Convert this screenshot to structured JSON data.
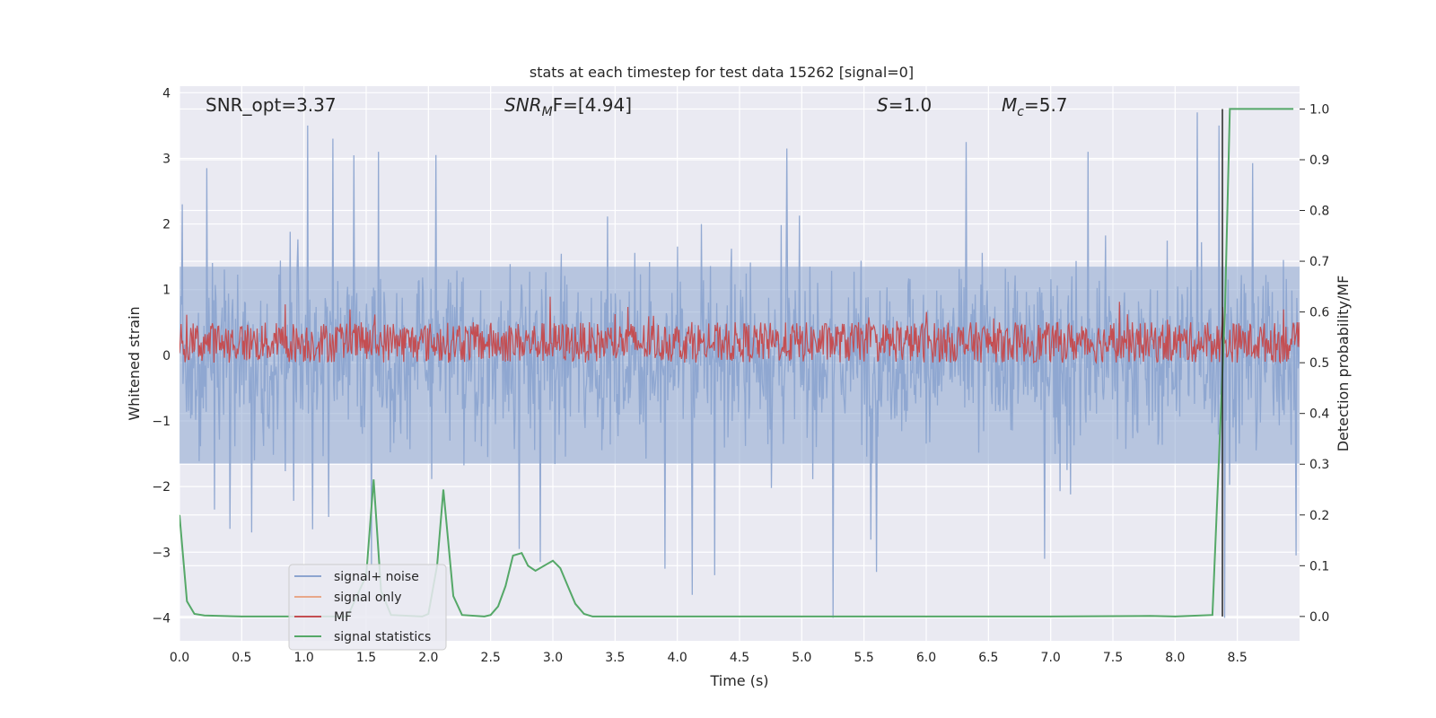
{
  "chart_data": {
    "type": "line",
    "title": "stats at each timestep for test data 15262 [signal=0]",
    "xlabel": "Time (s)",
    "ylabel": "Whitened strain",
    "ylabel_right": "Detection probability/MF",
    "xlim": [
      0.0,
      9.0
    ],
    "ylim": [
      -4.35,
      4.1
    ],
    "ylim_right": [
      -0.048,
      1.045
    ],
    "grid": true,
    "legend_position": "lower-left",
    "x_ticks": [
      "0.0",
      "0.5",
      "1.0",
      "1.5",
      "2.0",
      "2.5",
      "3.0",
      "3.5",
      "4.0",
      "4.5",
      "5.0",
      "5.5",
      "6.0",
      "6.5",
      "7.0",
      "7.5",
      "8.0",
      "8.5"
    ],
    "y_ticks": [
      "4",
      "3",
      "2",
      "1",
      "0",
      "−1",
      "−2",
      "−3",
      "−4"
    ],
    "y_ticks_right": [
      "1.0",
      "0.9",
      "0.8",
      "0.7",
      "0.6",
      "0.5",
      "0.4",
      "0.3",
      "0.2",
      "0.1",
      "0.0"
    ],
    "annotations": {
      "snr_opt": "SNR_opt=3.37",
      "snr_mf_base": "SNR",
      "snr_mf_sub": "M",
      "snr_mf_rest": "F=[4.94]",
      "s_italic": "S",
      "s_rest": "=1.0",
      "mc_base": "M",
      "mc_sub": "c",
      "mc_rest": "=5.7"
    },
    "series": [
      {
        "name": "signal+ noise",
        "color": "#8da5d0",
        "axis": "left",
        "description_range": [
          -3.2,
          3.2
        ],
        "peaks": [
          {
            "x": 0.02,
            "y": 2.3
          },
          {
            "x": 0.22,
            "y": 2.85
          },
          {
            "x": 0.28,
            "y": -2.35
          },
          {
            "x": 0.58,
            "y": -2.7
          },
          {
            "x": 1.03,
            "y": 3.5
          },
          {
            "x": 1.07,
            "y": -2.65
          },
          {
            "x": 1.23,
            "y": 3.3
          },
          {
            "x": 1.6,
            "y": 3.1
          },
          {
            "x": 2.06,
            "y": 3.05
          },
          {
            "x": 2.73,
            "y": -2.95
          },
          {
            "x": 2.9,
            "y": -3.15
          },
          {
            "x": 3.9,
            "y": -3.25
          },
          {
            "x": 4.12,
            "y": -3.65
          },
          {
            "x": 4.3,
            "y": -3.35
          },
          {
            "x": 4.88,
            "y": 3.15
          },
          {
            "x": 5.25,
            "y": -4.0
          },
          {
            "x": 5.6,
            "y": -3.3
          },
          {
            "x": 6.32,
            "y": 3.25
          },
          {
            "x": 6.95,
            "y": -3.1
          },
          {
            "x": 7.3,
            "y": 3.1
          },
          {
            "x": 8.18,
            "y": 3.7
          },
          {
            "x": 8.35,
            "y": 3.5
          },
          {
            "x": 8.4,
            "y": -4.0
          },
          {
            "x": 8.97,
            "y": -3.05
          }
        ]
      },
      {
        "name": "signal only",
        "color": "#e8a88a",
        "axis": "left",
        "values_note": "zero"
      },
      {
        "name": "MF",
        "color": "#c44e52",
        "axis": "right",
        "baseline": 0.505,
        "range": [
          0.5,
          0.58
        ],
        "peaks": [
          {
            "x": 0.85,
            "y": 0.615
          },
          {
            "x": 1.37,
            "y": 0.605
          },
          {
            "x": 1.57,
            "y": 0.595
          },
          {
            "x": 2.98,
            "y": 0.63
          },
          {
            "x": 3.6,
            "y": 0.61
          },
          {
            "x": 6.0,
            "y": 0.6
          },
          {
            "x": 7.55,
            "y": 0.62
          },
          {
            "x": 8.38,
            "y": 0.61
          },
          {
            "x": 8.87,
            "y": 0.605
          }
        ]
      },
      {
        "name": "signal statistics",
        "color": "#55a868",
        "axis": "right",
        "points": [
          [
            0.0,
            0.2
          ],
          [
            0.06,
            0.03
          ],
          [
            0.12,
            0.005
          ],
          [
            0.2,
            0.002
          ],
          [
            0.5,
            0.0
          ],
          [
            1.0,
            0.0
          ],
          [
            1.35,
            0.0
          ],
          [
            1.5,
            0.08
          ],
          [
            1.56,
            0.27
          ],
          [
            1.62,
            0.05
          ],
          [
            1.7,
            0.003
          ],
          [
            1.95,
            0.0
          ],
          [
            2.0,
            0.005
          ],
          [
            2.07,
            0.1
          ],
          [
            2.12,
            0.25
          ],
          [
            2.2,
            0.04
          ],
          [
            2.27,
            0.003
          ],
          [
            2.45,
            0.0
          ],
          [
            2.5,
            0.003
          ],
          [
            2.56,
            0.02
          ],
          [
            2.62,
            0.06
          ],
          [
            2.68,
            0.12
          ],
          [
            2.75,
            0.125
          ],
          [
            2.8,
            0.1
          ],
          [
            2.86,
            0.09
          ],
          [
            2.93,
            0.1
          ],
          [
            3.0,
            0.11
          ],
          [
            3.06,
            0.095
          ],
          [
            3.12,
            0.06
          ],
          [
            3.18,
            0.025
          ],
          [
            3.25,
            0.005
          ],
          [
            3.32,
            0.0
          ],
          [
            4.0,
            0.0
          ],
          [
            5.0,
            0.0
          ],
          [
            6.0,
            0.0
          ],
          [
            7.0,
            0.0
          ],
          [
            7.8,
            0.001
          ],
          [
            8.0,
            0.0
          ],
          [
            8.3,
            0.003
          ],
          [
            8.35,
            0.3
          ],
          [
            8.4,
            0.6
          ],
          [
            8.44,
            1.0
          ],
          [
            8.6,
            1.0
          ],
          [
            8.95,
            1.0
          ]
        ]
      }
    ],
    "vertical_marker": {
      "x": 8.38,
      "color": "#262626",
      "axis": "right",
      "y_range": [
        0.0,
        1.0
      ]
    }
  }
}
